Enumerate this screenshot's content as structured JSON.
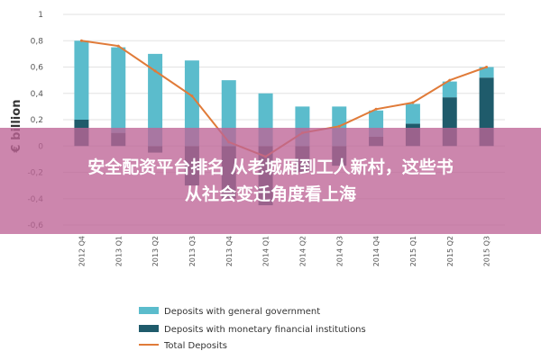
{
  "chart_data": {
    "type": "bar",
    "ylabel": "€ billion",
    "ylim": [
      -0.6,
      1
    ],
    "yticks": [
      1,
      0.8,
      0.6,
      0.4,
      0.2,
      0,
      -0.2,
      -0.4,
      -0.6
    ],
    "ytick_labels": [
      "1",
      "0,8",
      "0,6",
      "0,4",
      "0,2",
      "0",
      "-0,2",
      "-0,4",
      "-0,6"
    ],
    "categories": [
      "2012 Q4",
      "2013 Q1",
      "2013 Q2",
      "2013 Q3",
      "2013 Q4",
      "2014 Q1",
      "2014 Q2",
      "2014 Q3",
      "2014 Q4",
      "2015 Q1",
      "2015 Q2",
      "2015 Q3"
    ],
    "series": [
      {
        "name": "Deposits with general government",
        "type": "bar",
        "color": "#5bbccc",
        "values": [
          0.6,
          0.65,
          0.7,
          0.65,
          0.5,
          0.4,
          0.3,
          0.3,
          0.2,
          0.15,
          0.12,
          0.08
        ]
      },
      {
        "name": "Deposits with monetary financial institutions",
        "type": "bar",
        "color": "#1f5b6b",
        "values": [
          0.2,
          0.1,
          -0.05,
          -0.3,
          -0.4,
          -0.45,
          -0.2,
          -0.15,
          0.07,
          0.17,
          0.37,
          0.52
        ]
      },
      {
        "name": "Total Deposits",
        "type": "line",
        "color": "#e07b39",
        "values": [
          0.8,
          0.76,
          0.57,
          0.38,
          0.03,
          -0.08,
          0.1,
          0.15,
          0.28,
          0.33,
          0.5,
          0.6
        ]
      }
    ],
    "legend": "bottom"
  },
  "overlay": {
    "line1": "安全配资平台排名 从老城厢到工人新村，这些书",
    "line2": "从社会变迁角度看上海"
  }
}
